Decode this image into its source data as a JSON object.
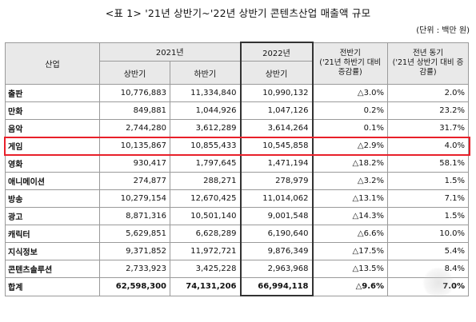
{
  "caption": "<표 1> '21년 상반기~'22년 상반기 콘텐츠산업 매출액 규모",
  "unit": "(단위 : 백만 원)",
  "header": {
    "industry": "산업",
    "year2021": "2021년",
    "year2022": "2022년",
    "h1": "상반기",
    "h2": "하반기",
    "h3": "상반기",
    "prev_half_title": "전반기",
    "prev_half_sub": "('21년 하반기 대비 증감률)",
    "yoy_title": "전년 동기",
    "yoy_sub": "('21년 상반기 대비 증감률)"
  },
  "rows": [
    {
      "name": "출판",
      "h1_2021": "10,776,883",
      "h2_2021": "11,334,840",
      "h1_2022": "10,990,132",
      "vs_prev": "△3.0%",
      "vs_yoy": "2.0%"
    },
    {
      "name": "만화",
      "h1_2021": "849,881",
      "h2_2021": "1,044,926",
      "h1_2022": "1,047,126",
      "vs_prev": "0.2%",
      "vs_yoy": "23.2%"
    },
    {
      "name": "음악",
      "h1_2021": "2,744,280",
      "h2_2021": "3,612,289",
      "h1_2022": "3,614,264",
      "vs_prev": "0.1%",
      "vs_yoy": "31.7%"
    },
    {
      "name": "게임",
      "h1_2021": "10,135,867",
      "h2_2021": "10,855,433",
      "h1_2022": "10,545,858",
      "vs_prev": "△2.9%",
      "vs_yoy": "4.0%"
    },
    {
      "name": "영화",
      "h1_2021": "930,417",
      "h2_2021": "1,797,645",
      "h1_2022": "1,471,194",
      "vs_prev": "△18.2%",
      "vs_yoy": "58.1%"
    },
    {
      "name": "애니메이션",
      "h1_2021": "274,877",
      "h2_2021": "288,271",
      "h1_2022": "278,979",
      "vs_prev": "△3.2%",
      "vs_yoy": "1.5%"
    },
    {
      "name": "방송",
      "h1_2021": "10,279,154",
      "h2_2021": "12,670,425",
      "h1_2022": "11,014,062",
      "vs_prev": "△13.1%",
      "vs_yoy": "7.1%"
    },
    {
      "name": "광고",
      "h1_2021": "8,871,316",
      "h2_2021": "10,501,140",
      "h1_2022": "9,001,548",
      "vs_prev": "△14.3%",
      "vs_yoy": "1.5%"
    },
    {
      "name": "캐릭터",
      "h1_2021": "5,629,851",
      "h2_2021": "6,628,289",
      "h1_2022": "6,190,640",
      "vs_prev": "△6.6%",
      "vs_yoy": "10.0%"
    },
    {
      "name": "지식정보",
      "h1_2021": "9,371,852",
      "h2_2021": "11,972,721",
      "h1_2022": "9,876,349",
      "vs_prev": "△17.5%",
      "vs_yoy": "5.4%"
    },
    {
      "name": "콘텐츠솔루션",
      "h1_2021": "2,733,923",
      "h2_2021": "3,425,228",
      "h1_2022": "2,963,968",
      "vs_prev": "△13.5%",
      "vs_yoy": "8.4%"
    }
  ],
  "total": {
    "name": "합계",
    "h1_2021": "62,598,300",
    "h2_2021": "74,131,206",
    "h1_2022": "66,994,118",
    "vs_prev": "△9.6%",
    "vs_yoy": "7.0%"
  },
  "highlight_color": "#e8202a"
}
